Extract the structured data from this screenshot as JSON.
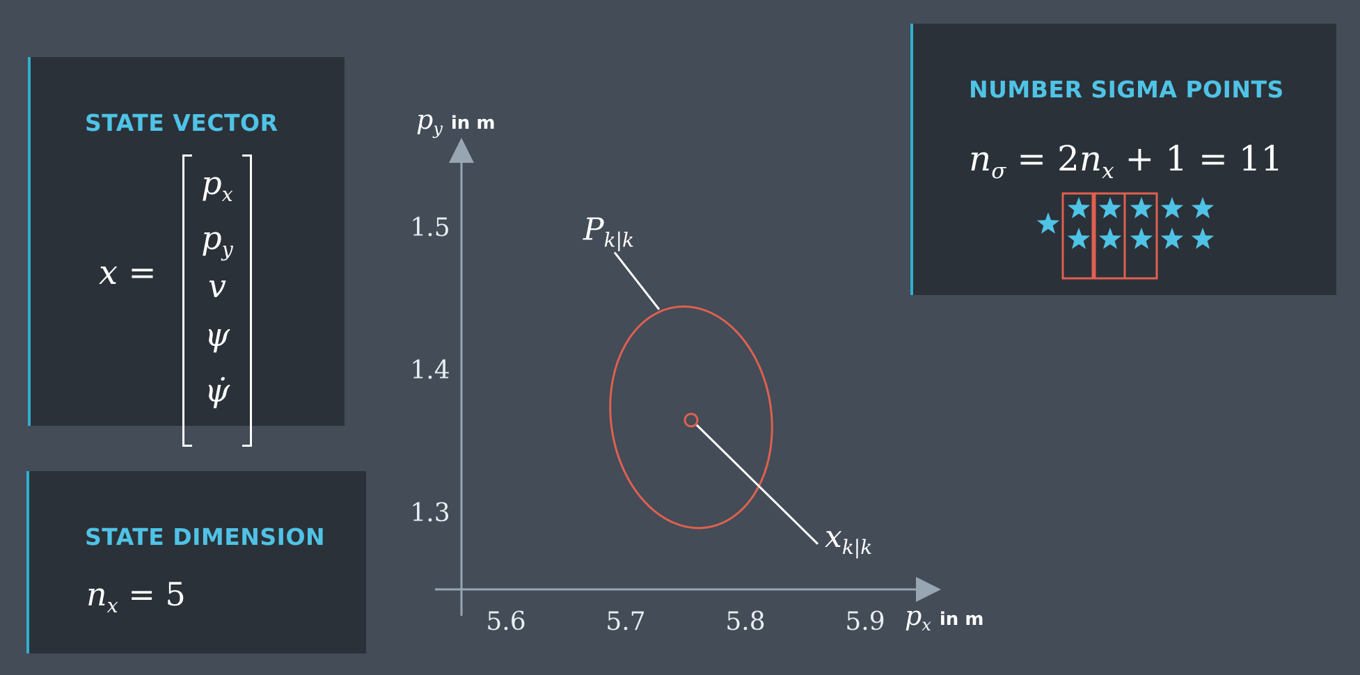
{
  "state_vector": {
    "title": "STATE VECTOR",
    "lhs": "x =",
    "entries": [
      {
        "base": "p",
        "sub": "x"
      },
      {
        "base": "p",
        "sub": "y"
      },
      {
        "base": "v",
        "sub": ""
      },
      {
        "base": "ψ",
        "sub": ""
      },
      {
        "base": "ψ̇",
        "sub": ""
      }
    ]
  },
  "state_dimension": {
    "title": "STATE DIMENSION",
    "n": "n",
    "sub": "x",
    "rest": " = 5"
  },
  "sigma_points": {
    "title": "NUMBER SIGMA POINTS",
    "n": "n",
    "sub": "σ",
    "mid": " = 2",
    "n2": "n",
    "sub2": "x",
    "rest": " + 1 = 11",
    "star_count": 11,
    "star_color": "#4fc3e6",
    "highlight_color": "#e0604f"
  },
  "chart_data": {
    "type": "scatter",
    "x_axis": {
      "symbol": "p",
      "sub": "x",
      "unit": "in m",
      "ticks": [
        "5.6",
        "5.7",
        "5.8",
        "5.9"
      ]
    },
    "y_axis": {
      "symbol": "p",
      "sub": "y",
      "unit": "in m",
      "ticks": [
        "1.3",
        "1.4",
        "1.5"
      ]
    },
    "mean": {
      "x": 5.75,
      "y": 1.365,
      "label": "x",
      "label_sub": "k|k"
    },
    "covariance_ellipse": {
      "cx": 5.75,
      "cy": 1.367,
      "rx": 0.067,
      "ry": 0.078,
      "angle_deg": -8,
      "label": "P",
      "label_sub": "k|k"
    },
    "colors": {
      "axis": "#97a6b2",
      "ellipse": "#e0604f",
      "leader": "#ffffff"
    }
  }
}
